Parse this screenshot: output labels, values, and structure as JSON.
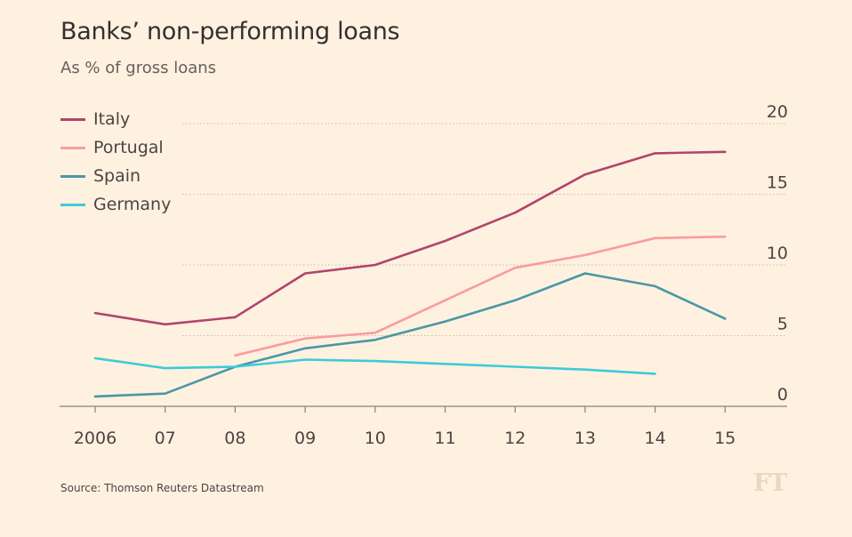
{
  "chart_data": {
    "type": "line",
    "title": "Banks’ non-performing loans",
    "subtitle": "As % of gross loans",
    "x": [
      "2006",
      "07",
      "08",
      "09",
      "10",
      "11",
      "12",
      "13",
      "14",
      "15"
    ],
    "ylim": [
      0,
      20
    ],
    "yticks": [
      0,
      5,
      10,
      15,
      20
    ],
    "y_axis_side": "right",
    "grid": "horizontal dotted",
    "legend_position": "top-left",
    "series": [
      {
        "name": "Italy",
        "color": "#b2446b",
        "values": [
          6.6,
          5.8,
          6.3,
          9.4,
          10.0,
          11.7,
          13.7,
          16.4,
          17.9,
          18.0
        ]
      },
      {
        "name": "Portugal",
        "color": "#fa9c9c",
        "values": [
          null,
          null,
          3.6,
          4.8,
          5.2,
          7.5,
          9.8,
          10.7,
          11.9,
          12.0
        ]
      },
      {
        "name": "Spain",
        "color": "#4a97a6",
        "values": [
          0.7,
          0.9,
          2.8,
          4.1,
          4.7,
          6.0,
          7.5,
          9.4,
          8.5,
          6.2
        ]
      },
      {
        "name": "Germany",
        "color": "#3ccbd8",
        "values": [
          3.4,
          2.7,
          2.8,
          3.3,
          3.2,
          3.0,
          2.8,
          2.6,
          2.3,
          null
        ]
      }
    ]
  },
  "source": "Source: Thomson Reuters Datastream",
  "logo": "FT"
}
